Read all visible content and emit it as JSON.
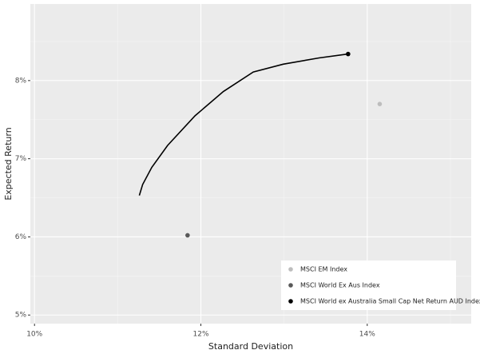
{
  "chart_data": {
    "type": "scatter",
    "x_label": "Standard Deviation",
    "y_label": "Expected Return",
    "xlim": [
      9.95,
      15.25
    ],
    "ylim": [
      4.89,
      8.98
    ],
    "xticks": [
      {
        "value": 10,
        "label": "10%"
      },
      {
        "value": 12,
        "label": "12%"
      },
      {
        "value": 14,
        "label": "14%"
      }
    ],
    "yticks": [
      {
        "value": 5,
        "label": "5%"
      },
      {
        "value": 6,
        "label": "6%"
      },
      {
        "value": 7,
        "label": "7%"
      },
      {
        "value": 8,
        "label": "8%"
      }
    ],
    "grid": true,
    "legend": "bottom-right",
    "series": [
      {
        "name": "MSCI EM Index",
        "color": "#bdbdbd",
        "x": [
          14.15
        ],
        "values": [
          7.7
        ]
      },
      {
        "name": "MSCI World Ex Aus Index",
        "color": "#595959",
        "x": [
          11.84
        ],
        "values": [
          6.02
        ]
      },
      {
        "name": "MSCI World ex Australia Small Cap Net Return AUD Index",
        "color": "#000000",
        "x": [
          13.77
        ],
        "values": [
          8.34
        ]
      }
    ],
    "line": {
      "color": "#000000",
      "x": [
        11.26,
        11.3,
        11.41,
        11.6,
        11.93,
        12.27,
        12.63,
        12.99,
        13.42,
        13.77
      ],
      "values": [
        6.53,
        6.67,
        6.89,
        7.17,
        7.55,
        7.86,
        8.11,
        8.21,
        8.29,
        8.34
      ]
    }
  }
}
